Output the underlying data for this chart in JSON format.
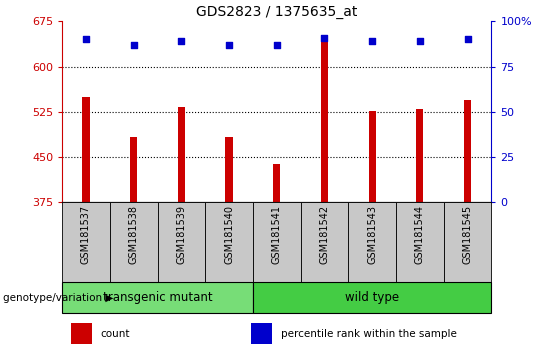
{
  "title": "GDS2823 / 1375635_at",
  "samples": [
    "GSM181537",
    "GSM181538",
    "GSM181539",
    "GSM181540",
    "GSM181541",
    "GSM181542",
    "GSM181543",
    "GSM181544",
    "GSM181545"
  ],
  "counts": [
    550,
    483,
    533,
    483,
    438,
    652,
    526,
    530,
    545
  ],
  "percentile_ranks": [
    90,
    87,
    89,
    87,
    87,
    91,
    89,
    89,
    90
  ],
  "ylim_left": [
    375,
    675
  ],
  "ylim_right": [
    0,
    100
  ],
  "yticks_left": [
    375,
    450,
    525,
    600,
    675
  ],
  "yticks_right": [
    0,
    25,
    50,
    75,
    100
  ],
  "bar_color": "#cc0000",
  "dot_color": "#0000cc",
  "groups": [
    {
      "label": "transgenic mutant",
      "start": 0,
      "end": 3,
      "color": "#77dd77"
    },
    {
      "label": "wild type",
      "start": 4,
      "end": 8,
      "color": "#44cc44"
    }
  ],
  "group_label": "genotype/variation",
  "legend_items": [
    {
      "color": "#cc0000",
      "label": "count"
    },
    {
      "color": "#0000cc",
      "label": "percentile rank within the sample"
    }
  ],
  "tick_bg_color": "#c8c8c8",
  "title_fontsize": 10,
  "bar_width": 0.15,
  "fig_width": 5.4,
  "fig_height": 3.54,
  "dpi": 100
}
